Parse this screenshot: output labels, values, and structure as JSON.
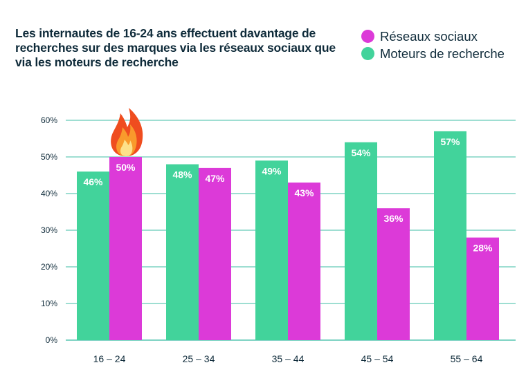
{
  "chart_data": {
    "type": "bar",
    "title": "Les internautes de 16-24 ans effectuent davantage de recherches sur des marques via les réseaux sociaux que via les moteurs de recherche",
    "categories": [
      "16 – 24",
      "25 – 34",
      "35 – 44",
      "45 – 54",
      "55 – 64"
    ],
    "series": [
      {
        "name": "Moteurs de recherche",
        "color": "#42d39b",
        "values": [
          46,
          48,
          49,
          54,
          57
        ]
      },
      {
        "name": "Réseaux sociaux",
        "color": "#dc3ad8",
        "values": [
          50,
          47,
          43,
          36,
          28
        ]
      }
    ],
    "legend_order": [
      "Réseaux sociaux",
      "Moteurs de recherche"
    ],
    "yticks": [
      "0%",
      "10%",
      "20%",
      "30%",
      "40%",
      "50%",
      "60%"
    ],
    "ylim": [
      0,
      60
    ],
    "grid": true,
    "gridline_color": "#7fd3c4",
    "legend_placement": "top-right",
    "annotation_icon": "fire-icon"
  }
}
